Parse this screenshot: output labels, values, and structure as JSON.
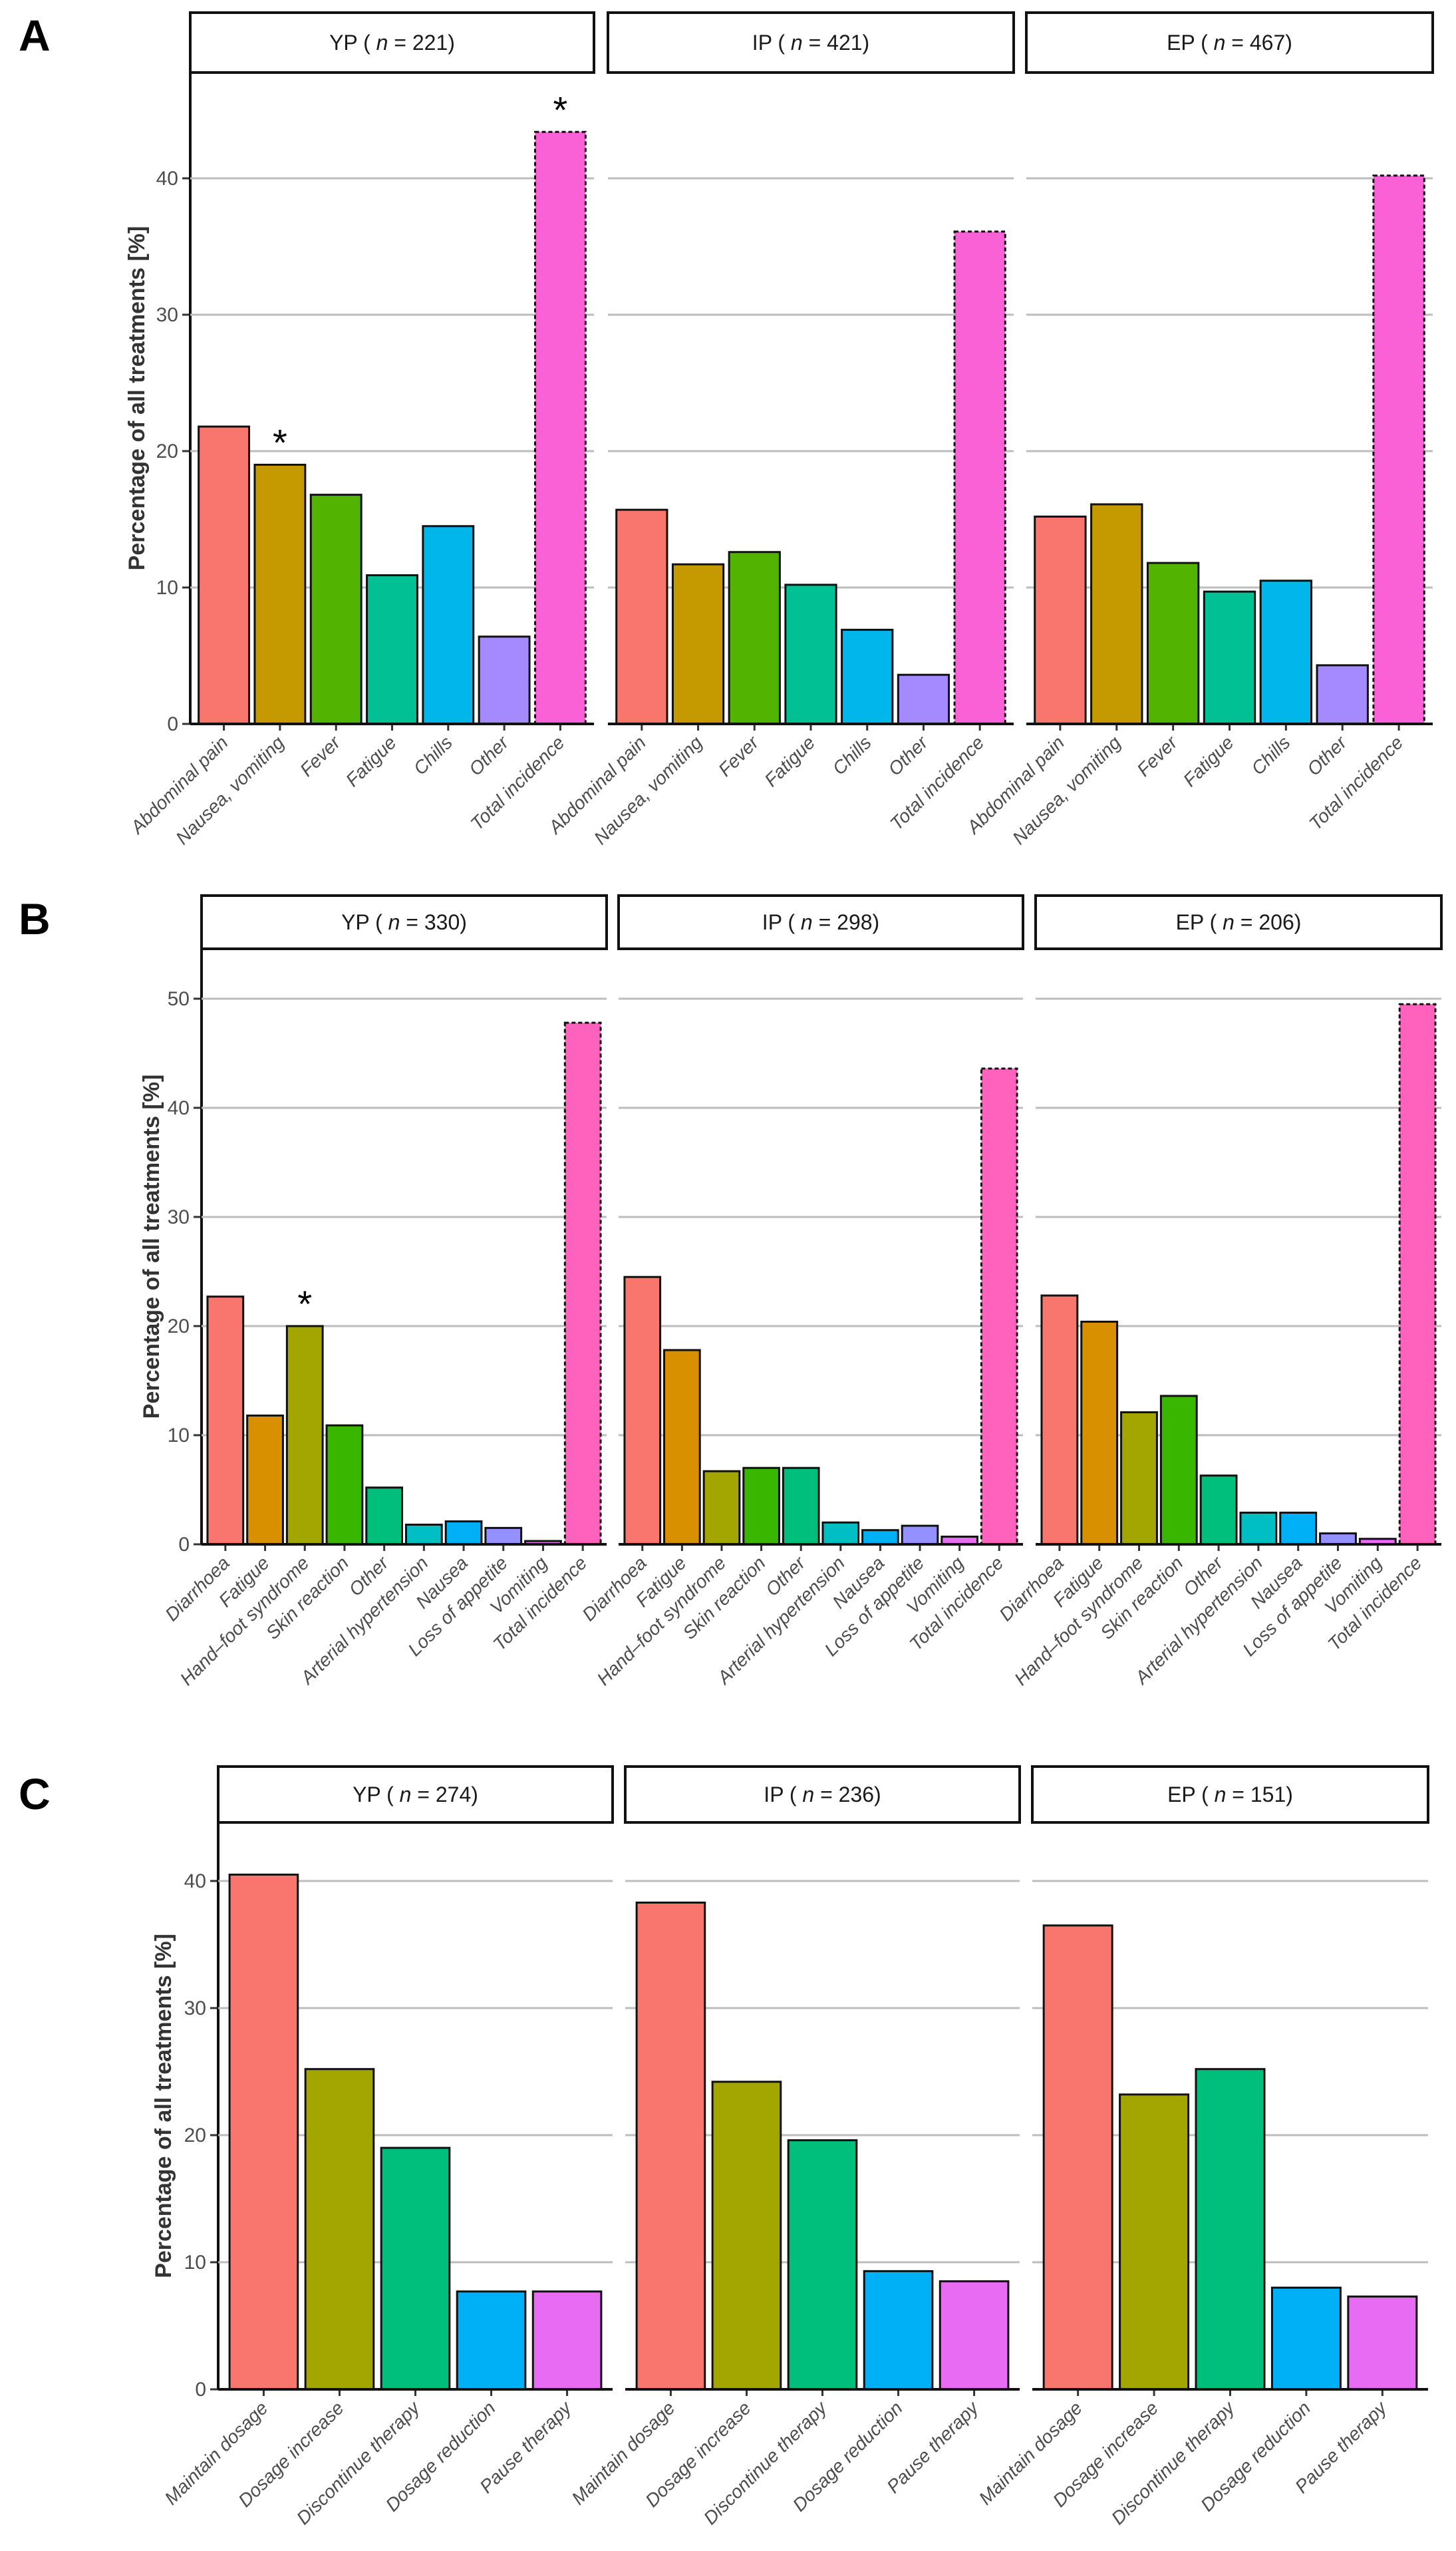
{
  "chart_data": [
    {
      "type": "bar",
      "panel_label": "A",
      "ylabel": "Percentage of all treatments [%]",
      "yticks": [
        0,
        10,
        20,
        30,
        40
      ],
      "ylim": [
        0,
        47
      ],
      "categories": [
        "Abdominal pain",
        "Nausea, vomiting",
        "Fever",
        "Fatigue",
        "Chills",
        "Other",
        "Total incidence"
      ],
      "colors": [
        "#F8766D",
        "#C49A00",
        "#53B400",
        "#00C094",
        "#00B6EB",
        "#A58AFF",
        "#FB61D7"
      ],
      "dashed_category": "Total incidence",
      "facets": [
        {
          "group": "YP",
          "n": "221",
          "values": [
            21.8,
            19.0,
            16.8,
            10.9,
            14.5,
            6.4,
            43.4
          ],
          "asterisks": [
            "Nausea, vomiting",
            "Total incidence"
          ]
        },
        {
          "group": "IP",
          "n": "421",
          "values": [
            15.7,
            11.7,
            12.6,
            10.2,
            6.9,
            3.6,
            36.1
          ],
          "asterisks": []
        },
        {
          "group": "EP",
          "n": "467",
          "values": [
            15.2,
            16.1,
            11.8,
            9.7,
            10.5,
            4.3,
            40.2
          ],
          "asterisks": []
        }
      ]
    },
    {
      "type": "bar",
      "panel_label": "B",
      "ylabel": "Percentage of all treatments [%]",
      "yticks": [
        0,
        10,
        20,
        30,
        40,
        50
      ],
      "ylim": [
        0,
        52
      ],
      "categories": [
        "Diarrhoea",
        "Fatigue",
        "Hand–foot syndrome",
        "Skin reaction",
        "Other",
        "Arterial hypertension",
        "Nausea",
        "Loss of appetite",
        "Vomiting",
        "Total incidence"
      ],
      "colors": [
        "#F8766D",
        "#D89000",
        "#A3A500",
        "#39B600",
        "#00BF7D",
        "#00BFC4",
        "#00B0F6",
        "#9590FF",
        "#E76BF3",
        "#FF62BC"
      ],
      "dashed_category": "Total incidence",
      "facets": [
        {
          "group": "YP",
          "n": "330",
          "values": [
            22.7,
            11.8,
            20.0,
            10.9,
            5.2,
            1.8,
            2.1,
            1.5,
            0.3,
            47.8
          ],
          "asterisks": [
            "Hand–foot syndrome"
          ]
        },
        {
          "group": "IP",
          "n": "298",
          "values": [
            24.5,
            17.8,
            6.7,
            7.0,
            7.0,
            2.0,
            1.3,
            1.7,
            0.7,
            43.6
          ],
          "asterisks": []
        },
        {
          "group": "EP",
          "n": "206",
          "values": [
            22.8,
            20.4,
            12.1,
            13.6,
            6.3,
            2.9,
            2.9,
            1.0,
            0.5,
            49.5
          ],
          "asterisks": []
        }
      ]
    },
    {
      "type": "bar",
      "panel_label": "C",
      "ylabel": "Percentage of all treatments [%]",
      "yticks": [
        0,
        10,
        20,
        30,
        40
      ],
      "ylim": [
        0,
        44
      ],
      "categories": [
        "Maintain dosage",
        "Dosage increase",
        "Discontinue  therapy",
        "Dosage reduction",
        "Pause therapy"
      ],
      "colors": [
        "#F8766D",
        "#A3A500",
        "#00BF7D",
        "#00B0F6",
        "#E76BF3"
      ],
      "dashed_category": null,
      "facets": [
        {
          "group": "YP",
          "n": "274",
          "values": [
            40.5,
            25.2,
            19.0,
            7.7,
            7.7
          ],
          "asterisks": []
        },
        {
          "group": "IP",
          "n": "236",
          "values": [
            38.3,
            24.2,
            19.6,
            9.3,
            8.5
          ],
          "asterisks": []
        },
        {
          "group": "EP",
          "n": "151",
          "values": [
            36.5,
            23.2,
            25.2,
            8.0,
            7.3
          ],
          "asterisks": []
        }
      ]
    }
  ],
  "asterisk_symbol": "*",
  "n_symbol": "n"
}
